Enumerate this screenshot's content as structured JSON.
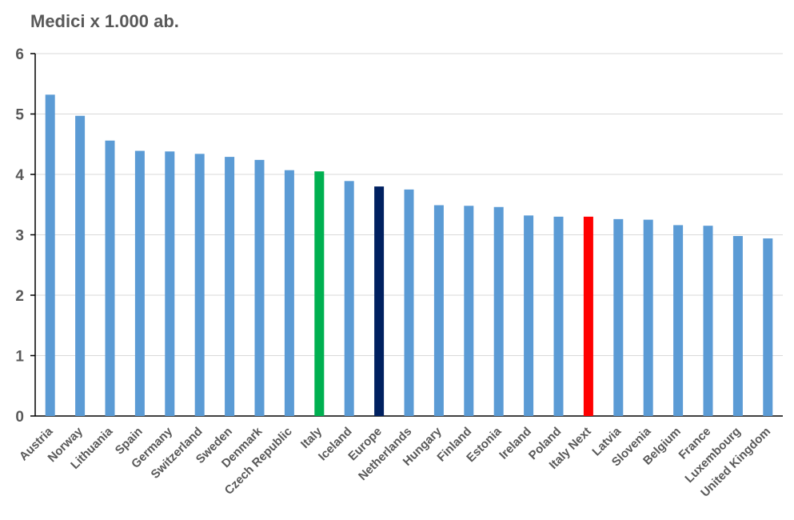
{
  "chart_data": {
    "type": "bar",
    "title": "Medici x 1.000 ab.",
    "xlabel": "",
    "ylabel": "",
    "ylim": [
      0,
      6
    ],
    "yticks": [
      0,
      1,
      2,
      3,
      4,
      5,
      6
    ],
    "grid": true,
    "legend": "none",
    "colors": {
      "default": "#5b9bd5",
      "Italy": "#00b050",
      "Europe": "#002060",
      "Italy Next": "#ff0000"
    },
    "categories": [
      "Austria",
      "Norway",
      "Lithuania",
      "Spain",
      "Germany",
      "Switzerland",
      "Sweden",
      "Denmark",
      "Czech Republic",
      "Italy",
      "Iceland",
      "Europe",
      "Netherlands",
      "Hungary",
      "Finland",
      "Estonia",
      "Ireland",
      "Poland",
      "Italy Next",
      "Latvia",
      "Slovenia",
      "Belgium",
      "France",
      "Luxembourg",
      "United Kingdom"
    ],
    "values": [
      5.32,
      4.97,
      4.56,
      4.39,
      4.38,
      4.34,
      4.29,
      4.24,
      4.07,
      4.05,
      3.89,
      3.8,
      3.75,
      3.49,
      3.48,
      3.46,
      3.32,
      3.3,
      3.3,
      3.26,
      3.25,
      3.16,
      3.15,
      2.98,
      2.94
    ]
  }
}
